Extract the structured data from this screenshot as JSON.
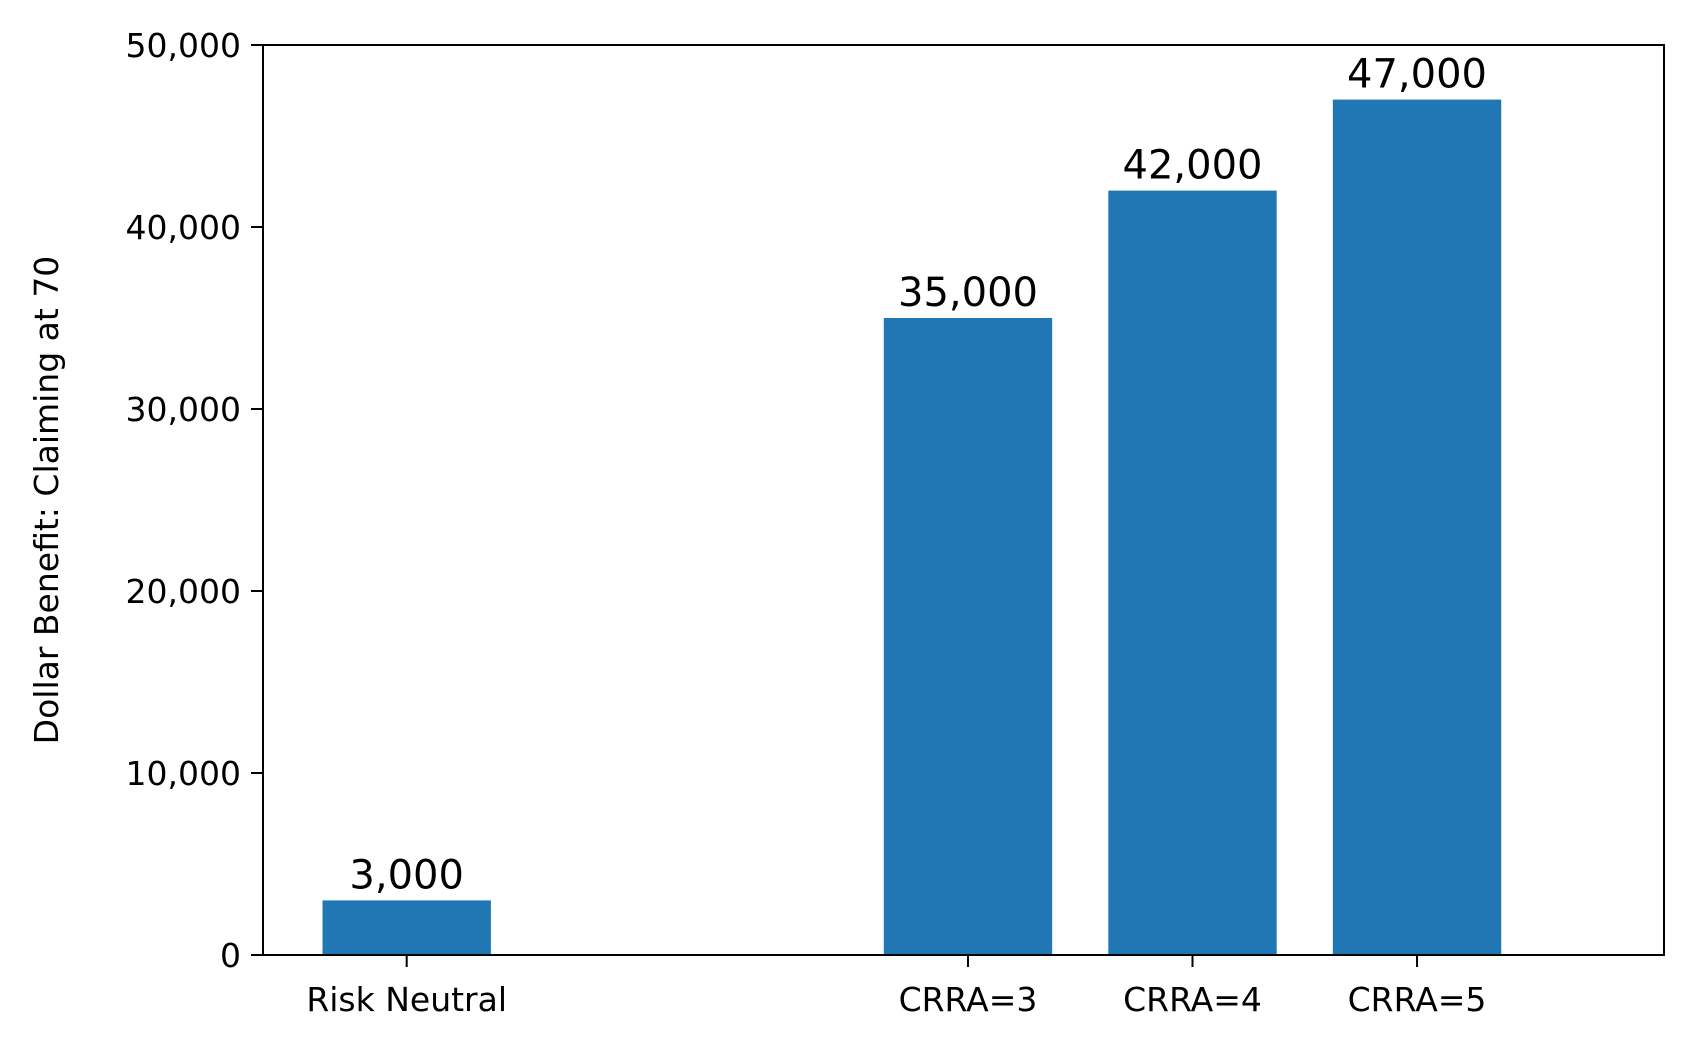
{
  "chart_data": {
    "type": "bar",
    "categories": [
      "Risk Neutral",
      "CRRA=3",
      "CRRA=4",
      "CRRA=5"
    ],
    "x_positions": [
      0,
      2.5,
      3.5,
      4.5
    ],
    "values": [
      3000,
      35000,
      42000,
      47000
    ],
    "data_labels": [
      "3,000",
      "35,000",
      "42,000",
      "47,000"
    ],
    "title": "",
    "xlabel": "",
    "ylabel": "Dollar Benefit: Claiming at 70",
    "ylim": [
      0,
      50000
    ],
    "yticks": [
      0,
      10000,
      20000,
      30000,
      40000,
      50000
    ],
    "ytick_labels": [
      "0",
      "10,000",
      "20,000",
      "30,000",
      "40,000",
      "50,000"
    ],
    "grid": false,
    "legend": "none",
    "bar_color": "#2077b4"
  }
}
